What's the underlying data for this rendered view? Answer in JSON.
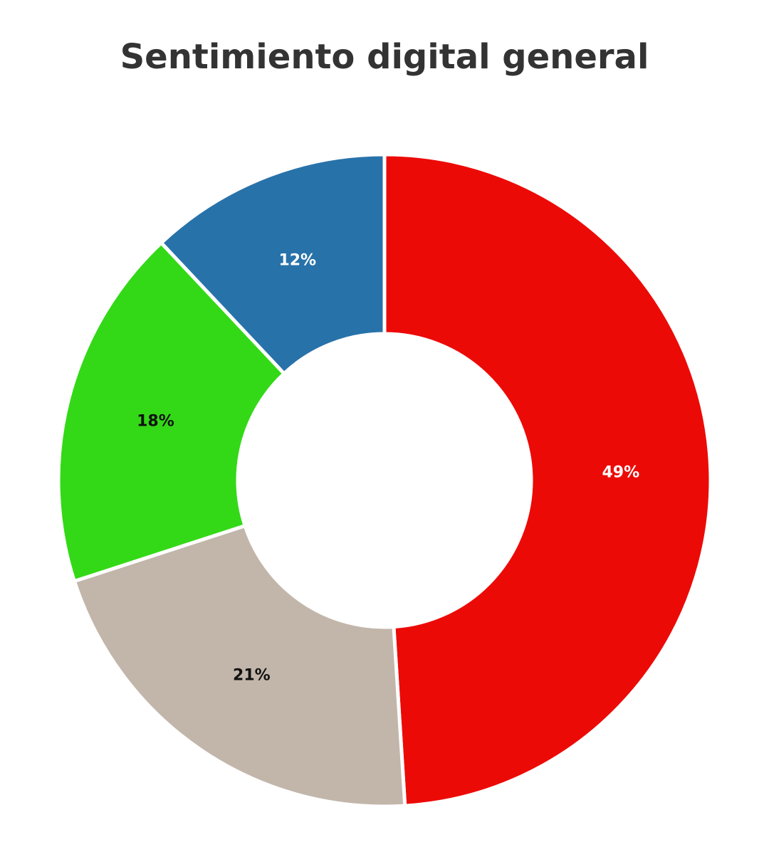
{
  "chart_data": {
    "type": "donut",
    "title": "Sentimiento digital general",
    "values": [
      49,
      21,
      18,
      12
    ],
    "value_labels": [
      "49%",
      "21%",
      "18%",
      "12%"
    ],
    "colors": [
      "#ec0a07",
      "#c2b6ab",
      "#33d916",
      "#2872aa"
    ],
    "label_colors": [
      "#ffffff",
      "#111111",
      "#111111",
      "#ffffff"
    ]
  }
}
